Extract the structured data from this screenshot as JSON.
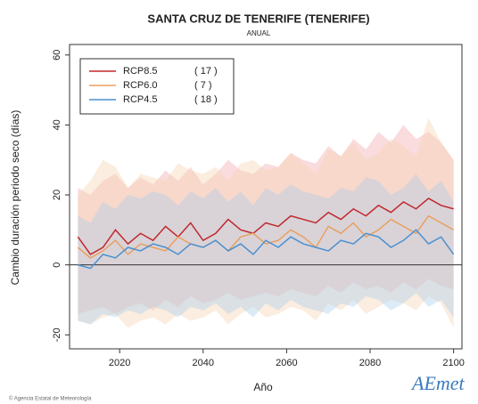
{
  "chart_data": {
    "type": "line",
    "title": "SANTA CRUZ DE TENERIFE (TENERIFE)",
    "subtitle": "ANUAL",
    "xlabel": "Año",
    "ylabel": "Cambio duración periodo seco (días)",
    "footer": "© Agencia Estatal de Meteorología",
    "logo": "AEmet",
    "x": [
      2010,
      2013,
      2016,
      2019,
      2022,
      2025,
      2028,
      2031,
      2034,
      2037,
      2040,
      2043,
      2046,
      2049,
      2052,
      2055,
      2058,
      2061,
      2064,
      2067,
      2070,
      2073,
      2076,
      2079,
      2082,
      2085,
      2088,
      2091,
      2094,
      2097,
      2100
    ],
    "xlim": [
      2008,
      2102
    ],
    "xticks": [
      2020,
      2040,
      2060,
      2080,
      2100
    ],
    "ylim": [
      -24,
      63
    ],
    "yticks": [
      -20,
      0,
      20,
      40,
      60
    ],
    "reference_line": 0,
    "legend": "upper left",
    "series": [
      {
        "name": "RCP8.5",
        "models_label": "( 17 )",
        "color": "#c0282d",
        "band_color": "#f2a8ad",
        "values": [
          8,
          3,
          5,
          10,
          6,
          9,
          7,
          11,
          8,
          12,
          7,
          9,
          13,
          10,
          9,
          12,
          11,
          14,
          13,
          12,
          15,
          13,
          16,
          14,
          17,
          15,
          18,
          16,
          19,
          17,
          16
        ],
        "lower": [
          -14,
          -13,
          -12,
          -14,
          -12,
          -11,
          -13,
          -10,
          -12,
          -9,
          -11,
          -10,
          -8,
          -10,
          -9,
          -8,
          -9,
          -7,
          -8,
          -9,
          -6,
          -8,
          -5,
          -7,
          -6,
          -8,
          -5,
          -7,
          -4,
          -6,
          -7
        ],
        "upper": [
          22,
          20,
          24,
          26,
          22,
          25,
          23,
          27,
          24,
          28,
          23,
          26,
          30,
          27,
          26,
          29,
          28,
          32,
          30,
          29,
          34,
          31,
          36,
          33,
          38,
          35,
          40,
          36,
          38,
          35,
          30
        ]
      },
      {
        "name": "RCP6.0",
        "models_label": "( 7 )",
        "color": "#e8a060",
        "band_color": "#f6d2ae",
        "values": [
          5,
          2,
          4,
          7,
          3,
          6,
          5,
          4,
          8,
          6,
          5,
          7,
          4,
          8,
          9,
          6,
          7,
          10,
          8,
          5,
          11,
          9,
          12,
          8,
          10,
          13,
          11,
          9,
          14,
          12,
          10
        ],
        "lower": [
          -16,
          -17,
          -15,
          -14,
          -18,
          -16,
          -15,
          -17,
          -14,
          -16,
          -15,
          -13,
          -17,
          -14,
          -12,
          -15,
          -14,
          -12,
          -13,
          -16,
          -11,
          -13,
          -10,
          -14,
          -12,
          -10,
          -11,
          -13,
          -9,
          -11,
          -18
        ],
        "upper": [
          20,
          24,
          30,
          28,
          22,
          26,
          25,
          24,
          29,
          27,
          26,
          28,
          24,
          29,
          30,
          27,
          28,
          32,
          29,
          26,
          33,
          31,
          35,
          30,
          32,
          36,
          34,
          31,
          42,
          35,
          30
        ]
      },
      {
        "name": "RCP4.5",
        "models_label": "( 18 )",
        "color": "#4a90d0",
        "band_color": "#a9cdec",
        "values": [
          0,
          -1,
          3,
          2,
          5,
          4,
          6,
          5,
          3,
          6,
          5,
          7,
          4,
          6,
          3,
          7,
          5,
          8,
          6,
          5,
          4,
          7,
          6,
          9,
          8,
          5,
          7,
          10,
          6,
          8,
          3
        ],
        "lower": [
          -16,
          -17,
          -14,
          -15,
          -13,
          -14,
          -12,
          -13,
          -15,
          -12,
          -13,
          -11,
          -14,
          -12,
          -15,
          -11,
          -13,
          -10,
          -12,
          -13,
          -14,
          -11,
          -12,
          -9,
          -10,
          -13,
          -11,
          -8,
          -12,
          -10,
          -15
        ],
        "upper": [
          14,
          12,
          18,
          16,
          20,
          19,
          21,
          20,
          17,
          21,
          19,
          22,
          18,
          21,
          17,
          22,
          20,
          23,
          21,
          20,
          19,
          22,
          21,
          25,
          24,
          20,
          22,
          26,
          21,
          24,
          18
        ]
      }
    ]
  }
}
